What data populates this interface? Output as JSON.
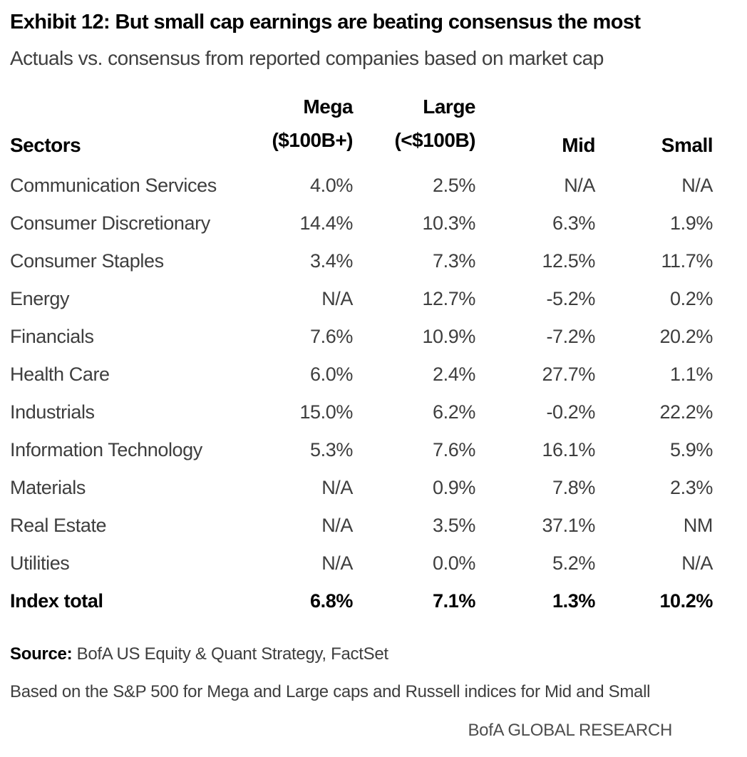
{
  "header": {
    "title": "Exhibit 12: But small cap earnings are beating consensus the most",
    "subtitle": "Actuals vs. consensus from reported companies based on market cap"
  },
  "table": {
    "headers": {
      "sectors": "Sectors",
      "mega_line1": "Mega",
      "mega_line2": "($100B+)",
      "large_line1": "Large",
      "large_line2": "(<$100B)",
      "mid": "Mid",
      "small": "Small"
    },
    "rows": [
      {
        "sector": "Communication Services",
        "mega": "4.0%",
        "large": "2.5%",
        "mid": "N/A",
        "small": "N/A"
      },
      {
        "sector": "Consumer Discretionary",
        "mega": "14.4%",
        "large": "10.3%",
        "mid": "6.3%",
        "small": "1.9%"
      },
      {
        "sector": "Consumer Staples",
        "mega": "3.4%",
        "large": "7.3%",
        "mid": "12.5%",
        "small": "11.7%"
      },
      {
        "sector": "Energy",
        "mega": "N/A",
        "large": "12.7%",
        "mid": "-5.2%",
        "small": "0.2%"
      },
      {
        "sector": "Financials",
        "mega": "7.6%",
        "large": "10.9%",
        "mid": "-7.2%",
        "small": "20.2%"
      },
      {
        "sector": "Health Care",
        "mega": "6.0%",
        "large": "2.4%",
        "mid": "27.7%",
        "small": "1.1%"
      },
      {
        "sector": "Industrials",
        "mega": "15.0%",
        "large": "6.2%",
        "mid": "-0.2%",
        "small": "22.2%"
      },
      {
        "sector": "Information Technology",
        "mega": "5.3%",
        "large": "7.6%",
        "mid": "16.1%",
        "small": "5.9%"
      },
      {
        "sector": "Materials",
        "mega": "N/A",
        "large": "0.9%",
        "mid": "7.8%",
        "small": "2.3%"
      },
      {
        "sector": "Real Estate",
        "mega": "N/A",
        "large": "3.5%",
        "mid": "37.1%",
        "small": "NM"
      },
      {
        "sector": "Utilities",
        "mega": "N/A",
        "large": "0.0%",
        "mid": "5.2%",
        "small": "N/A"
      }
    ],
    "total": {
      "sector": "Index total",
      "mega": "6.8%",
      "large": "7.1%",
      "mid": "1.3%",
      "small": "10.2%"
    }
  },
  "footer": {
    "source_label": "Source:",
    "source_text": "BofA US Equity & Quant Strategy, FactSet",
    "note": "Based on the S&P 500 for Mega and Large caps and Russell indices for Mid and Small",
    "branding": "BofA GLOBAL RESEARCH"
  },
  "colors": {
    "title_text": "#000000",
    "body_text": "#3e3e3e",
    "branding_text": "#4d4d4d",
    "background": "#ffffff"
  },
  "chart_data": {
    "type": "table",
    "title": "Exhibit 12: But small cap earnings are beating consensus the most",
    "subtitle": "Actuals vs. consensus from reported companies based on market cap",
    "columns": [
      "Sectors",
      "Mega ($100B+)",
      "Large (<$100B)",
      "Mid",
      "Small"
    ],
    "rows": [
      [
        "Communication Services",
        "4.0%",
        "2.5%",
        "N/A",
        "N/A"
      ],
      [
        "Consumer Discretionary",
        "14.4%",
        "10.3%",
        "6.3%",
        "1.9%"
      ],
      [
        "Consumer Staples",
        "3.4%",
        "7.3%",
        "12.5%",
        "11.7%"
      ],
      [
        "Energy",
        "N/A",
        "12.7%",
        "-5.2%",
        "0.2%"
      ],
      [
        "Financials",
        "7.6%",
        "10.9%",
        "-7.2%",
        "20.2%"
      ],
      [
        "Health Care",
        "6.0%",
        "2.4%",
        "27.7%",
        "1.1%"
      ],
      [
        "Industrials",
        "15.0%",
        "6.2%",
        "-0.2%",
        "22.2%"
      ],
      [
        "Information Technology",
        "5.3%",
        "7.6%",
        "16.1%",
        "5.9%"
      ],
      [
        "Materials",
        "N/A",
        "0.9%",
        "7.8%",
        "2.3%"
      ],
      [
        "Real Estate",
        "N/A",
        "3.5%",
        "37.1%",
        "NM"
      ],
      [
        "Utilities",
        "N/A",
        "0.0%",
        "5.2%",
        "N/A"
      ],
      [
        "Index total",
        "6.8%",
        "7.1%",
        "1.3%",
        "10.2%"
      ]
    ],
    "units": "percent beat of actuals vs. consensus",
    "source": "BofA US Equity & Quant Strategy, FactSet",
    "note": "Based on the S&P 500 for Mega and Large caps and Russell indices for Mid and Small",
    "branding": "BofA GLOBAL RESEARCH"
  }
}
